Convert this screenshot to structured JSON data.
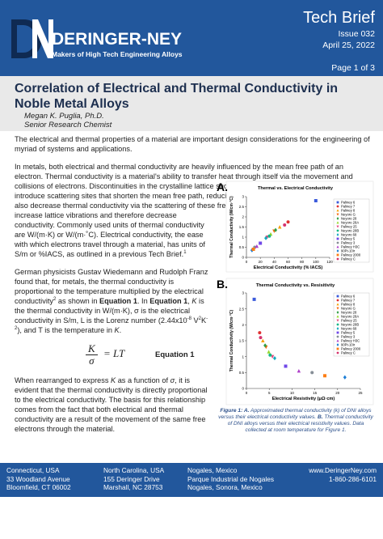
{
  "header": {
    "company": "DERINGER-NEY",
    "tagline": "Makers of High Tech Engineering Alloys",
    "doc_type": "Tech Brief",
    "issue": "Issue 032",
    "date": "April 25, 2022",
    "page": "Page 1 of 3"
  },
  "title_block": {
    "title": "Correlation of Electrical and Thermal Conductivity in Noble Metal Alloys",
    "author": "Megan K. Puglia, Ph.D.",
    "role": "Senior Research Chemist"
  },
  "body": {
    "paragraphs": [
      [
        "The electrical and thermal properties of a material are important design considerations for the engineering of myriad of systems and applications."
      ],
      [
        "In metals, both electrical and thermal conductivity are heavily influenced by the mean free path of an electron. Thermal conductivity is a material's ability to transfer heat through itself via the movement and collisions of electrons. Discontinuities in the crystalline lattice such as particles, solute, and interfaces introduce scattering sites that shorten the mean free path, reducing thermal conductivity.  Lattice vibrations also decrease thermal conductivity via the scattering of these free moving electrons. Higher temperatures increase lattice vibrations and therefore decrease conductivity. Commonly used units of thermal conductivity are W/(m·K) or W/(m·˚C).  Electrical conductivity, the ease with which electrons travel through a material, has units of S/m or %IACS, as outlined in a previous Tech Brief.",
        "1"
      ],
      [
        "German physicists Gustav Wiedemann and Rudolph Franz found that, for metals, the thermal conductivity is proportional to the temperature multiplied by the electrical conductivity",
        "2",
        " as shown in ",
        "Equation 1",
        ". In ",
        "Equation 1",
        ", ",
        "K",
        " is the thermal conductivity in W/(m·K), σ is the electrical conductivity in S/m, L is the Lorenz number (2.44x10",
        "-8",
        " V",
        "2",
        "K",
        "-2",
        "), and T is the temperature in ",
        "K",
        "."
      ],
      [
        "When rearranged to express ",
        "K",
        " as a function of ",
        "σ",
        ", it is evident that the thermal conductivity is directly proportional to the electrical conductivity. The basis for this relationship comes from the fact that both electrical and thermal conductivity are a result of the movement of the same free electrons through the material."
      ]
    ],
    "equation": {
      "numerator": "K",
      "denominator": "σ",
      "rhs": "= LT",
      "label": "Equation 1"
    }
  },
  "figure": {
    "charts": [
      {
        "label": "A.",
        "type": "scatter",
        "title": "Thermal vs. Electrical Conductivity",
        "x_label": "Electrical Conductivity (% IACS)",
        "y_label": "Thermal Conductivity (W/cm·°C)",
        "xlim": [
          0,
          120
        ],
        "xticks": [
          0,
          20,
          40,
          60,
          80,
          100,
          120
        ],
        "ylim": [
          0,
          3
        ],
        "yticks": [
          0,
          0.5,
          1,
          1.5,
          2,
          2.5,
          3
        ],
        "series": [
          {
            "name": "Paliney 6",
            "color": "#3b5bdb",
            "marker": "square",
            "x": [
              100
            ],
            "values": [
              2.8
            ]
          },
          {
            "name": "Paliney 7",
            "color": "#e03131",
            "marker": "circle",
            "x": [
              60
            ],
            "values": [
              1.75
            ]
          },
          {
            "name": "Paliney 8",
            "color": "#f59f00",
            "marker": "triangle",
            "x": [
              48
            ],
            "values": [
              1.5
            ]
          },
          {
            "name": "Neyoro G",
            "color": "#f76707",
            "marker": "triangle-down",
            "x": [
              40
            ],
            "values": [
              1.3
            ]
          },
          {
            "name": "Neyoro 28",
            "color": "#2f9e44",
            "marker": "diamond",
            "x": [
              42
            ],
            "values": [
              1.35
            ]
          },
          {
            "name": "Neyoro 28A",
            "color": "#94d82d",
            "marker": "triangle",
            "x": [
              35
            ],
            "values": [
              1.15
            ]
          },
          {
            "name": "Paliney 25",
            "color": "#e64980",
            "marker": "triangle-down",
            "x": [
              30
            ],
            "values": [
              1.0
            ]
          },
          {
            "name": "Neyoro 28B",
            "color": "#12b886",
            "marker": "circle",
            "x": [
              33
            ],
            "values": [
              1.05
            ]
          },
          {
            "name": "Neyoro 68",
            "color": "#15aabf",
            "marker": "diamond",
            "x": [
              28
            ],
            "values": [
              0.95
            ]
          },
          {
            "name": "Paliney 5",
            "color": "#7048e8",
            "marker": "square",
            "x": [
              20
            ],
            "values": [
              0.7
            ]
          },
          {
            "name": "Paliney 3",
            "color": "#868e96",
            "marker": "circle",
            "x": [
              12
            ],
            "values": [
              0.5
            ]
          },
          {
            "name": "Paliney H3C",
            "color": "#ae3ec9",
            "marker": "triangle",
            "x": [
              15
            ],
            "values": [
              0.55
            ]
          },
          {
            "name": "90Pt-10Ir",
            "color": "#1c7ed6",
            "marker": "diamond",
            "x": [
              8
            ],
            "values": [
              0.35
            ]
          },
          {
            "name": "Paliney 2000",
            "color": "#fd7e14",
            "marker": "square",
            "x": [
              10
            ],
            "values": [
              0.4
            ]
          },
          {
            "name": "Paliney C",
            "color": "#d6336c",
            "marker": "circle",
            "x": [
              55
            ],
            "values": [
              1.6
            ]
          }
        ]
      },
      {
        "label": "B.",
        "type": "scatter",
        "title": "Thermal Conductivity vs. Resisitivity",
        "x_label": "Electrical Resistivity (μΩ·cm)",
        "y_label": "Thermal Conductivity (W/cm·°C)",
        "xlim": [
          0,
          25
        ],
        "xticks": [
          0,
          5,
          10,
          15,
          20,
          25
        ],
        "ylim": [
          0,
          3
        ],
        "yticks": [
          0,
          0.5,
          1,
          1.5,
          2,
          2.5,
          3
        ],
        "series": [
          {
            "name": "Paliney 6",
            "color": "#3b5bdb",
            "marker": "square",
            "x": [
              1.7
            ],
            "values": [
              2.8
            ]
          },
          {
            "name": "Paliney 7",
            "color": "#e03131",
            "marker": "circle",
            "x": [
              2.9
            ],
            "values": [
              1.75
            ]
          },
          {
            "name": "Paliney 8",
            "color": "#f59f00",
            "marker": "triangle",
            "x": [
              3.6
            ],
            "values": [
              1.5
            ]
          },
          {
            "name": "Neyoro G",
            "color": "#f76707",
            "marker": "triangle-down",
            "x": [
              4.3
            ],
            "values": [
              1.3
            ]
          },
          {
            "name": "Neyoro 28",
            "color": "#2f9e44",
            "marker": "diamond",
            "x": [
              4.1
            ],
            "values": [
              1.35
            ]
          },
          {
            "name": "Neyoro 28A",
            "color": "#94d82d",
            "marker": "triangle",
            "x": [
              4.9
            ],
            "values": [
              1.15
            ]
          },
          {
            "name": "Paliney 25",
            "color": "#e64980",
            "marker": "triangle-down",
            "x": [
              5.7
            ],
            "values": [
              1.0
            ]
          },
          {
            "name": "Neyoro 28B",
            "color": "#12b886",
            "marker": "circle",
            "x": [
              5.2
            ],
            "values": [
              1.05
            ]
          },
          {
            "name": "Neyoro 68",
            "color": "#15aabf",
            "marker": "diamond",
            "x": [
              6.2
            ],
            "values": [
              0.95
            ]
          },
          {
            "name": "Paliney 5",
            "color": "#7048e8",
            "marker": "square",
            "x": [
              8.6
            ],
            "values": [
              0.7
            ]
          },
          {
            "name": "Paliney 3",
            "color": "#868e96",
            "marker": "circle",
            "x": [
              14.4
            ],
            "values": [
              0.5
            ]
          },
          {
            "name": "Paliney H3C",
            "color": "#ae3ec9",
            "marker": "triangle",
            "x": [
              11.5
            ],
            "values": [
              0.55
            ]
          },
          {
            "name": "90Pt-10Ir",
            "color": "#1c7ed6",
            "marker": "diamond",
            "x": [
              21.6
            ],
            "values": [
              0.35
            ]
          },
          {
            "name": "Paliney 2000",
            "color": "#fd7e14",
            "marker": "square",
            "x": [
              17.2
            ],
            "values": [
              0.4
            ]
          },
          {
            "name": "Paliney C",
            "color": "#d6336c",
            "marker": "circle",
            "x": [
              3.1
            ],
            "values": [
              1.6
            ]
          }
        ]
      }
    ],
    "caption": [
      "Figure 1: ",
      "A.",
      " Approximated thermal conductivity (k) of DNI alloys versus their electrical conductivity values. ",
      "B.",
      " Thermal conductivity of DNI alloys versus their electrical resistivity values. Data collected at room temperature for Figure 1."
    ]
  },
  "footer": {
    "locations": [
      [
        "Connecticut, USA",
        "33 Woodland Avenue",
        "Bloomfield, CT 06002"
      ],
      [
        "North Carolina, USA",
        "155 Deringer Drive",
        "Marshall, NC 28753"
      ],
      [
        "Nogales, Mexico",
        "Parque Industrial de Nogales",
        "Nogales, Sonora, Mexico"
      ]
    ],
    "contact": [
      "www.DeringerNey.com",
      "1-860-286-6101"
    ]
  }
}
